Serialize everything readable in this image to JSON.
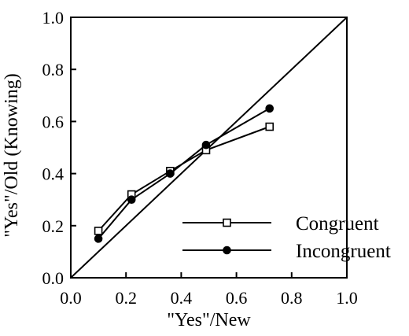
{
  "chart_data": {
    "type": "line",
    "title": "",
    "xlabel": "\"Yes\"/New",
    "ylabel": "\"Yes\"/Old (Knowing)",
    "xlim": [
      0.0,
      1.0
    ],
    "ylim": [
      0.0,
      1.0
    ],
    "x_ticks": [
      0.0,
      0.2,
      0.4,
      0.6,
      0.8,
      1.0
    ],
    "y_ticks": [
      0.0,
      0.2,
      0.4,
      0.6,
      0.8,
      1.0
    ],
    "x_tick_labels": [
      "0.0",
      "0.2",
      "0.4",
      "0.6",
      "0.8",
      "1.0"
    ],
    "y_tick_labels": [
      "0.0",
      "0.2",
      "0.4",
      "0.6",
      "0.8",
      "1.0"
    ],
    "grid": false,
    "legend_position": "bottom-right",
    "diagonal_reference": true,
    "series": [
      {
        "name": "Congruent",
        "marker": "open-square",
        "x": [
          0.1,
          0.22,
          0.36,
          0.49,
          0.72
        ],
        "y": [
          0.18,
          0.32,
          0.41,
          0.49,
          0.58
        ]
      },
      {
        "name": "Incongruent",
        "marker": "filled-circle",
        "x": [
          0.1,
          0.22,
          0.36,
          0.49,
          0.72
        ],
        "y": [
          0.15,
          0.3,
          0.4,
          0.51,
          0.65
        ]
      }
    ],
    "colors": {
      "line": "#000000",
      "marker_fill_open": "#ffffff",
      "marker_fill_solid": "#000000"
    }
  }
}
